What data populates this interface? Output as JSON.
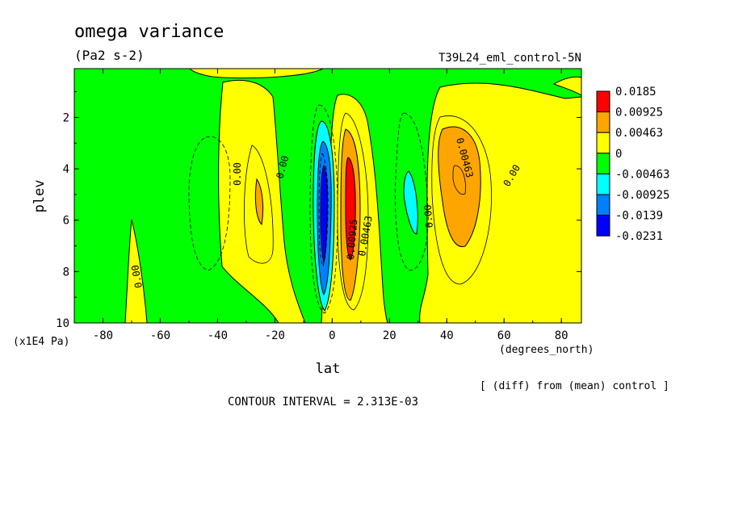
{
  "chart_data": {
    "type": "heatmap",
    "title": "omega variance",
    "units": "(Pa2 s-2)",
    "run_label": "T39L24_eml_control-5N",
    "xlabel": "lat",
    "x_units": "(degrees_north)",
    "ylabel": "plev",
    "y_units": "(x1E4 Pa)",
    "xlim": [
      -90,
      87
    ],
    "ylim": [
      10,
      0.1
    ],
    "x_ticks": [
      -80,
      -60,
      -40,
      -20,
      0,
      20,
      40,
      60,
      80
    ],
    "y_ticks": [
      2,
      4,
      6,
      8,
      10
    ],
    "contour_interval": "CONTOUR INTERVAL = 2.313E-03",
    "note": "[ (diff) from (mean) control ]",
    "colorbar": {
      "levels": [
        "0.0185",
        "0.00925",
        "0.00463",
        "0",
        "-0.00463",
        "-0.00925",
        "-0.0139",
        "-0.0231"
      ],
      "colors": [
        "#ff0000",
        "#ffa500",
        "#ffff00",
        "#00ff00",
        "#00ffff",
        "#0080ff",
        "#0000ff"
      ]
    },
    "contour_labels": [
      {
        "text": "0.00",
        "lat": -31,
        "plev": 3.9
      },
      {
        "text": "0.00",
        "lat": -17,
        "plev": 3.9
      },
      {
        "text": "0.00",
        "lat": -67,
        "plev": 7.8
      },
      {
        "text": "0.00463",
        "lat": 9,
        "plev": 5.8
      },
      {
        "text": "0.00925",
        "lat": 7,
        "plev": 6.3
      },
      {
        "text": "0.00",
        "lat": 37,
        "plev": 6.0
      },
      {
        "text": "0.00463",
        "lat": 47,
        "plev": 3.5
      },
      {
        "text": "0.00",
        "lat": 63,
        "plev": 4.2
      }
    ],
    "regions": [
      {
        "name": "yellow-band-south",
        "level": "0",
        "lat_range": [
          -32,
          -15
        ],
        "plev_range": [
          0.5,
          10
        ]
      },
      {
        "name": "orange-south",
        "level": "0.00463",
        "lat_range": [
          -27,
          -23
        ],
        "plev_range": [
          4.2,
          5.9
        ]
      },
      {
        "name": "blue-equator",
        "level": "-0.0139",
        "lat_range": [
          -5,
          3
        ],
        "plev_range": [
          2.5,
          9.5
        ]
      },
      {
        "name": "red-core",
        "level": "0.00925",
        "lat_range": [
          6,
          10
        ],
        "plev_range": [
          3.5,
          7.0
        ]
      },
      {
        "name": "cyan-north",
        "level": "-0.00463",
        "lat_range": [
          26,
          33
        ],
        "plev_range": [
          3.8,
          6.5
        ]
      },
      {
        "name": "orange-north",
        "level": "0.00463",
        "lat_range": [
          38,
          50
        ],
        "plev_range": [
          2.2,
          7.6
        ]
      }
    ]
  }
}
